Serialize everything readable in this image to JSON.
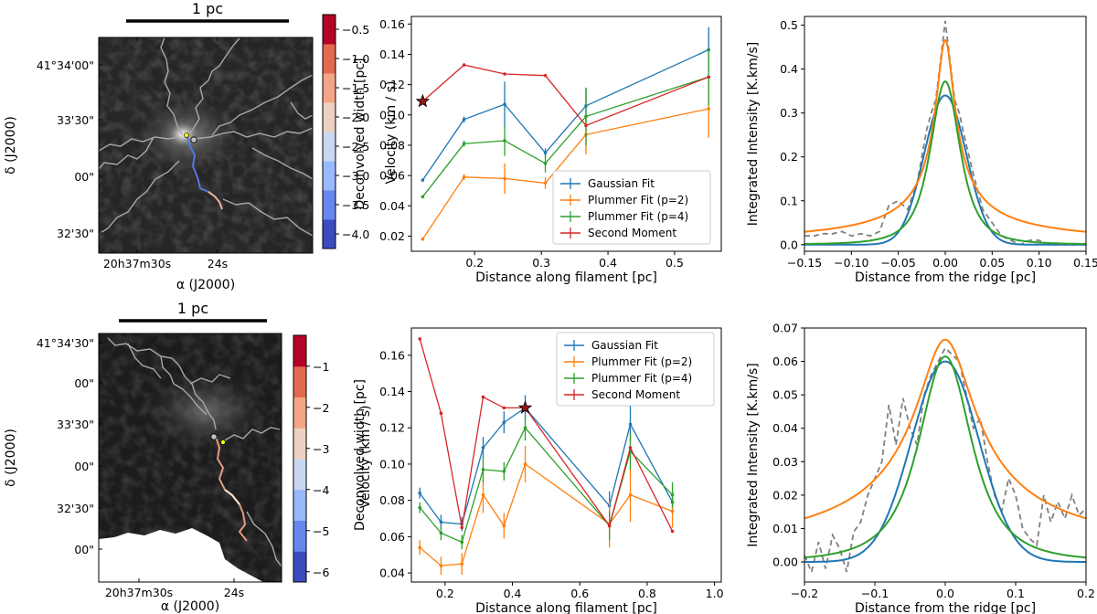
{
  "colors": {
    "blue": "#1f77b4",
    "orange": "#ff7f0e",
    "green": "#2ca02c",
    "red": "#d62728",
    "dashed": "#808080"
  },
  "maps": [
    {
      "scale_label": "1 pc",
      "dec_ticks": [
        "41°34'00\"",
        "33'30\"",
        "00\"",
        "32'30\""
      ],
      "ra_ticks": [
        "20h37m30s",
        "24s"
      ],
      "xlabel": "α (J2000)",
      "ylabel": "δ (J2000)",
      "colorbar": {
        "label": "Velocity (km / s)",
        "ticks": [
          "−0.5",
          "−1.0",
          "−1.5",
          "−2.0",
          "−2.5",
          "−3.0",
          "−3.5",
          "−4.0"
        ],
        "min": -4.25,
        "max": -0.25
      }
    },
    {
      "scale_label": "1 pc",
      "dec_ticks": [
        "41°34'30\"",
        "00\"",
        "33'30\"",
        "00\"",
        "32'30\"",
        "00\""
      ],
      "ra_ticks": [
        "20h37m30s",
        "24s"
      ],
      "xlabel": "α (J2000)",
      "ylabel": "δ (J2000)",
      "colorbar": {
        "label": "Velocity (km / s)",
        "ticks": [
          "−1",
          "−2",
          "−3",
          "−4",
          "−5",
          "−6"
        ],
        "min": -6.25,
        "max": -0.25
      }
    }
  ],
  "chart_data": [
    {
      "type": "line",
      "title": "",
      "xlabel": "Distance along filament [pc]",
      "ylabel": "Deconvolved width [pc]",
      "xlim": [
        0.105,
        0.57
      ],
      "ylim": [
        0.01,
        0.165
      ],
      "xticks": [
        0.2,
        0.3,
        0.4,
        0.5
      ],
      "yticks": [
        0.02,
        0.04,
        0.06,
        0.08,
        0.1,
        0.12,
        0.14,
        0.16
      ],
      "x": [
        0.122,
        0.184,
        0.245,
        0.306,
        0.367,
        0.551
      ],
      "series": [
        {
          "name": "Gaussian Fit",
          "values": [
            0.057,
            0.097,
            0.107,
            0.075,
            0.106,
            0.143
          ],
          "err": [
            0.001,
            0.002,
            0.015,
            0.003,
            0.012,
            0.015
          ]
        },
        {
          "name": "Plummer Fit (p=2)",
          "values": [
            0.018,
            0.059,
            0.058,
            0.055,
            0.087,
            0.104
          ],
          "err": [
            0.001,
            0.002,
            0.01,
            0.004,
            0.013,
            0.019
          ]
        },
        {
          "name": "Plummer Fit (p=4)",
          "values": [
            0.046,
            0.081,
            0.083,
            0.068,
            0.099,
            0.125
          ],
          "err": [
            0.001,
            0.002,
            0.01,
            0.006,
            0.019,
            0.019
          ]
        },
        {
          "name": "Second Moment",
          "values": [
            0.109,
            0.133,
            0.127,
            0.126,
            0.093,
            0.125
          ],
          "err": [
            0,
            0,
            0,
            0,
            0,
            0
          ]
        }
      ],
      "star": {
        "x": 0.122,
        "y": 0.109
      },
      "legend": "lower-right"
    },
    {
      "type": "line",
      "title": "",
      "xlabel": "Distance from the ridge [pc]",
      "ylabel": "Integrated Intensity [K.km/s]",
      "xlim": [
        -0.15,
        0.15
      ],
      "ylim": [
        -0.015,
        0.52
      ],
      "xticks": [
        -0.15,
        -0.1,
        -0.05,
        0.0,
        0.05,
        0.1,
        0.15
      ],
      "yticks": [
        0.0,
        0.1,
        0.2,
        0.3,
        0.4,
        0.5
      ],
      "curves": [
        {
          "name": "Gaussian",
          "model": "gauss",
          "amp": 0.34,
          "width": 0.0225
        },
        {
          "name": "Plummer (p=2)",
          "model": "plummer",
          "amp": 0.466,
          "width": 0.0095,
          "p": 2
        },
        {
          "name": "Plummer (p=4)",
          "model": "plummer",
          "amp": 0.372,
          "width": 0.0245,
          "p": 4
        }
      ],
      "data_profile": {
        "x": [
          -0.15,
          -0.14,
          -0.13,
          -0.12,
          -0.11,
          -0.1,
          -0.09,
          -0.08,
          -0.07,
          -0.06,
          -0.05,
          -0.04,
          -0.03,
          -0.02,
          -0.015,
          -0.01,
          -0.005,
          0.0,
          0.005,
          0.01,
          0.015,
          0.02,
          0.03,
          0.04,
          0.05,
          0.06,
          0.07,
          0.08,
          0.09,
          0.1,
          0.11,
          0.12,
          0.13,
          0.14,
          0.15
        ],
        "y": [
          0.02,
          0.02,
          0.025,
          0.025,
          0.03,
          0.02,
          0.025,
          0.02,
          0.03,
          0.09,
          0.1,
          0.08,
          0.14,
          0.26,
          0.3,
          0.33,
          0.42,
          0.51,
          0.42,
          0.33,
          0.3,
          0.25,
          0.16,
          0.08,
          0.05,
          0.02,
          0.01,
          0.0,
          0.01,
          0.01,
          0.0,
          0.0,
          0.0,
          0.0,
          0.0
        ]
      }
    },
    {
      "type": "line",
      "title": "",
      "xlabel": "Distance along filament [pc]",
      "ylabel": "Deconvolved width [pc]",
      "xlim": [
        0.1,
        1.02
      ],
      "ylim": [
        0.035,
        0.175
      ],
      "xticks": [
        0.2,
        0.4,
        0.6,
        0.8,
        1.0
      ],
      "yticks": [
        0.04,
        0.06,
        0.08,
        0.1,
        0.12,
        0.14,
        0.16
      ],
      "x": [
        0.125,
        0.188,
        0.25,
        0.313,
        0.375,
        0.438,
        0.688,
        0.75,
        0.875
      ],
      "series": [
        {
          "name": "Gaussian Fit",
          "values": [
            0.084,
            0.068,
            0.067,
            0.109,
            0.123,
            0.131,
            0.077,
            0.122,
            0.079
          ],
          "err": [
            0.003,
            0.004,
            0.004,
            0.006,
            0.006,
            0.007,
            0.008,
            0.01,
            0.006
          ]
        },
        {
          "name": "Plummer Fit (p=2)",
          "values": [
            0.054,
            0.044,
            0.045,
            0.083,
            0.066,
            0.1,
            0.067,
            0.083,
            0.074
          ],
          "err": [
            0.004,
            0.005,
            0.006,
            0.01,
            0.007,
            0.01,
            0.013,
            0.015,
            0.009
          ]
        },
        {
          "name": "Plummer Fit (p=4)",
          "values": [
            0.076,
            0.062,
            0.057,
            0.097,
            0.096,
            0.12,
            0.066,
            0.107,
            0.083
          ],
          "err": [
            0.003,
            0.004,
            0.004,
            0.007,
            0.005,
            0.007,
            0.008,
            0.01,
            0.007
          ]
        },
        {
          "name": "Second Moment",
          "values": [
            0.169,
            0.128,
            0.065,
            0.137,
            0.131,
            0.131,
            0.066,
            0.109,
            0.063
          ],
          "err": [
            0,
            0,
            0,
            0,
            0,
            0,
            0,
            0,
            0
          ]
        }
      ],
      "star": {
        "x": 0.438,
        "y": 0.131
      },
      "legend": "upper-right"
    },
    {
      "type": "line",
      "title": "",
      "xlabel": "Distance from the ridge [pc]",
      "ylabel": "Integrated Intensity [K.km/s]",
      "xlim": [
        -0.2,
        0.2
      ],
      "ylim": [
        -0.006,
        0.07
      ],
      "xticks": [
        -0.2,
        -0.1,
        0.0,
        0.1,
        0.2
      ],
      "yticks": [
        0.0,
        0.01,
        0.02,
        0.03,
        0.04,
        0.05,
        0.06,
        0.07
      ],
      "curves": [
        {
          "name": "Gaussian",
          "model": "gauss",
          "amp": 0.06,
          "width": 0.048
        },
        {
          "name": "Plummer (p=2)",
          "model": "plummer",
          "amp": 0.0665,
          "width": 0.04,
          "p": 2
        },
        {
          "name": "Plummer (p=4)",
          "model": "plummer",
          "amp": 0.0615,
          "width": 0.058,
          "p": 4
        }
      ],
      "data_profile": {
        "x": [
          -0.2,
          -0.19,
          -0.18,
          -0.17,
          -0.16,
          -0.15,
          -0.14,
          -0.13,
          -0.12,
          -0.11,
          -0.1,
          -0.09,
          -0.08,
          -0.07,
          -0.06,
          -0.05,
          -0.04,
          -0.03,
          -0.02,
          -0.01,
          0.0,
          0.01,
          0.02,
          0.03,
          0.04,
          0.05,
          0.06,
          0.07,
          0.08,
          0.09,
          0.1,
          0.11,
          0.12,
          0.13,
          0.14,
          0.15,
          0.16,
          0.17,
          0.18,
          0.19,
          0.2
        ],
        "y": [
          0.002,
          -0.003,
          0.006,
          -0.002,
          0.008,
          0.004,
          -0.003,
          0.009,
          0.012,
          0.02,
          0.025,
          0.03,
          0.047,
          0.035,
          0.049,
          0.04,
          0.035,
          0.05,
          0.056,
          0.06,
          0.064,
          0.062,
          0.06,
          0.05,
          0.04,
          0.043,
          0.03,
          0.02,
          0.015,
          0.025,
          0.02,
          0.01,
          0.007,
          0.005,
          0.02,
          0.012,
          0.018,
          0.013,
          0.02,
          0.014,
          0.016
        ]
      }
    }
  ]
}
